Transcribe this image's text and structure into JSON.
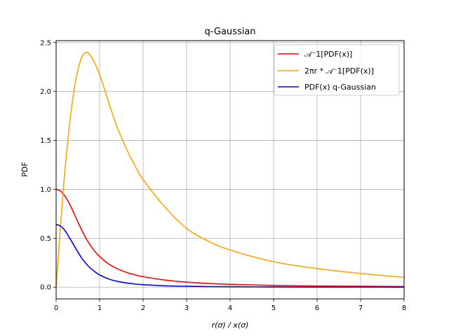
{
  "chart_data": {
    "type": "line",
    "title": "q-Gaussian",
    "xlabel": "r(σ) / x(σ)",
    "ylabel": "PDF",
    "xlim": [
      0,
      8
    ],
    "ylim": [
      -0.12,
      2.52
    ],
    "xticks": [
      0,
      1,
      2,
      3,
      4,
      5,
      6,
      7,
      8
    ],
    "yticks": [
      0.0,
      0.5,
      1.0,
      1.5,
      2.0,
      2.5
    ],
    "xtick_labels": [
      "0",
      "1",
      "2",
      "3",
      "4",
      "5",
      "6",
      "7",
      "8"
    ],
    "ytick_labels": [
      "0.0",
      "0.5",
      "1.0",
      "1.5",
      "2.0",
      "2.5"
    ],
    "grid": true,
    "legend_position": "top-right",
    "series": [
      {
        "name": "𝒜⁻1[PDF(x)]",
        "color": "#ff0000",
        "x": [
          0,
          0.1,
          0.2,
          0.3,
          0.4,
          0.5,
          0.6,
          0.7,
          0.8,
          0.9,
          1.0,
          1.2,
          1.4,
          1.6,
          1.8,
          2.0,
          2.5,
          3.0,
          3.5,
          4.0,
          5.0,
          6.0,
          7.0,
          8.0
        ],
        "y": [
          1.0,
          0.983,
          0.934,
          0.858,
          0.766,
          0.667,
          0.574,
          0.49,
          0.42,
          0.361,
          0.313,
          0.24,
          0.19,
          0.154,
          0.128,
          0.107,
          0.073,
          0.051,
          0.038,
          0.029,
          0.018,
          0.012,
          0.009,
          0.006
        ]
      },
      {
        "name": "2πr * 𝒜⁻1[PDF(x)]",
        "color": "#ffa500",
        "x": [
          0,
          0.05,
          0.1,
          0.15,
          0.2,
          0.3,
          0.4,
          0.5,
          0.6,
          0.7,
          0.8,
          0.9,
          1.0,
          1.1,
          1.2,
          1.4,
          1.6,
          1.8,
          2.0,
          2.5,
          3.0,
          3.5,
          4.0,
          5.0,
          6.0,
          7.0,
          8.0
        ],
        "y": [
          0.0,
          0.31,
          0.62,
          0.91,
          1.18,
          1.63,
          1.98,
          2.22,
          2.36,
          2.4,
          2.36,
          2.28,
          2.17,
          2.04,
          1.9,
          1.64,
          1.43,
          1.25,
          1.1,
          0.82,
          0.6,
          0.47,
          0.38,
          0.26,
          0.19,
          0.14,
          0.1
        ]
      },
      {
        "name": "PDF(x) q-Gaussian",
        "color": "#0000ff",
        "x": [
          0,
          0.1,
          0.2,
          0.3,
          0.4,
          0.5,
          0.6,
          0.7,
          0.8,
          0.9,
          1.0,
          1.2,
          1.4,
          1.6,
          1.8,
          2.0,
          2.5,
          3.0,
          3.5,
          4.0,
          5.0,
          6.0,
          7.0,
          8.0
        ],
        "y": [
          0.64,
          0.625,
          0.58,
          0.51,
          0.435,
          0.36,
          0.29,
          0.235,
          0.19,
          0.155,
          0.125,
          0.085,
          0.06,
          0.044,
          0.033,
          0.025,
          0.014,
          0.009,
          0.006,
          0.004,
          0.002,
          0.001,
          0.001,
          0.0
        ]
      }
    ]
  }
}
